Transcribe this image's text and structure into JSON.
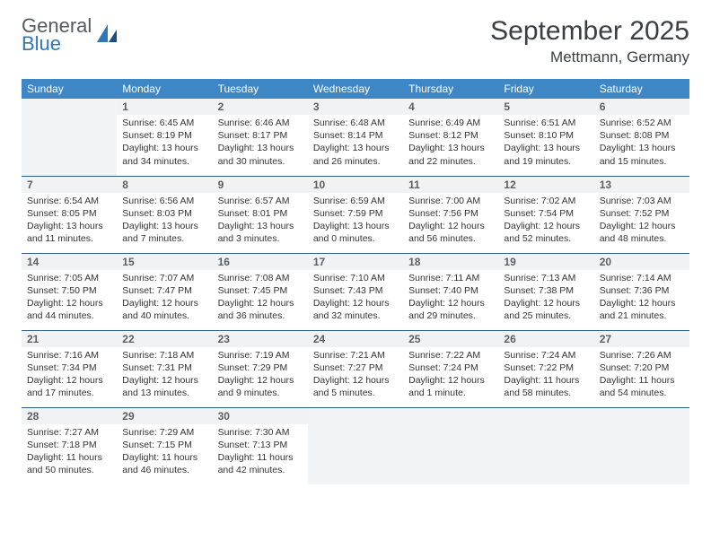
{
  "logo": {
    "text1": "General",
    "text2": "Blue"
  },
  "title": "September 2025",
  "location": "Mettmann, Germany",
  "colors": {
    "header_bg": "#3d87c7",
    "header_text": "#ffffff",
    "daynum_bg": "#f1f2f3",
    "empty_bg": "#f2f3f4",
    "rule": "#2f5d8a",
    "title_color": "#3a3f42",
    "logo_gray": "#555b60",
    "logo_blue": "#2e77b8"
  },
  "weekdays": [
    "Sunday",
    "Monday",
    "Tuesday",
    "Wednesday",
    "Thursday",
    "Friday",
    "Saturday"
  ],
  "weeks": [
    [
      null,
      {
        "d": "1",
        "sr": "Sunrise: 6:45 AM",
        "ss": "Sunset: 8:19 PM",
        "dl1": "Daylight: 13 hours",
        "dl2": "and 34 minutes."
      },
      {
        "d": "2",
        "sr": "Sunrise: 6:46 AM",
        "ss": "Sunset: 8:17 PM",
        "dl1": "Daylight: 13 hours",
        "dl2": "and 30 minutes."
      },
      {
        "d": "3",
        "sr": "Sunrise: 6:48 AM",
        "ss": "Sunset: 8:14 PM",
        "dl1": "Daylight: 13 hours",
        "dl2": "and 26 minutes."
      },
      {
        "d": "4",
        "sr": "Sunrise: 6:49 AM",
        "ss": "Sunset: 8:12 PM",
        "dl1": "Daylight: 13 hours",
        "dl2": "and 22 minutes."
      },
      {
        "d": "5",
        "sr": "Sunrise: 6:51 AM",
        "ss": "Sunset: 8:10 PM",
        "dl1": "Daylight: 13 hours",
        "dl2": "and 19 minutes."
      },
      {
        "d": "6",
        "sr": "Sunrise: 6:52 AM",
        "ss": "Sunset: 8:08 PM",
        "dl1": "Daylight: 13 hours",
        "dl2": "and 15 minutes."
      }
    ],
    [
      {
        "d": "7",
        "sr": "Sunrise: 6:54 AM",
        "ss": "Sunset: 8:05 PM",
        "dl1": "Daylight: 13 hours",
        "dl2": "and 11 minutes."
      },
      {
        "d": "8",
        "sr": "Sunrise: 6:56 AM",
        "ss": "Sunset: 8:03 PM",
        "dl1": "Daylight: 13 hours",
        "dl2": "and 7 minutes."
      },
      {
        "d": "9",
        "sr": "Sunrise: 6:57 AM",
        "ss": "Sunset: 8:01 PM",
        "dl1": "Daylight: 13 hours",
        "dl2": "and 3 minutes."
      },
      {
        "d": "10",
        "sr": "Sunrise: 6:59 AM",
        "ss": "Sunset: 7:59 PM",
        "dl1": "Daylight: 13 hours",
        "dl2": "and 0 minutes."
      },
      {
        "d": "11",
        "sr": "Sunrise: 7:00 AM",
        "ss": "Sunset: 7:56 PM",
        "dl1": "Daylight: 12 hours",
        "dl2": "and 56 minutes."
      },
      {
        "d": "12",
        "sr": "Sunrise: 7:02 AM",
        "ss": "Sunset: 7:54 PM",
        "dl1": "Daylight: 12 hours",
        "dl2": "and 52 minutes."
      },
      {
        "d": "13",
        "sr": "Sunrise: 7:03 AM",
        "ss": "Sunset: 7:52 PM",
        "dl1": "Daylight: 12 hours",
        "dl2": "and 48 minutes."
      }
    ],
    [
      {
        "d": "14",
        "sr": "Sunrise: 7:05 AM",
        "ss": "Sunset: 7:50 PM",
        "dl1": "Daylight: 12 hours",
        "dl2": "and 44 minutes."
      },
      {
        "d": "15",
        "sr": "Sunrise: 7:07 AM",
        "ss": "Sunset: 7:47 PM",
        "dl1": "Daylight: 12 hours",
        "dl2": "and 40 minutes."
      },
      {
        "d": "16",
        "sr": "Sunrise: 7:08 AM",
        "ss": "Sunset: 7:45 PM",
        "dl1": "Daylight: 12 hours",
        "dl2": "and 36 minutes."
      },
      {
        "d": "17",
        "sr": "Sunrise: 7:10 AM",
        "ss": "Sunset: 7:43 PM",
        "dl1": "Daylight: 12 hours",
        "dl2": "and 32 minutes."
      },
      {
        "d": "18",
        "sr": "Sunrise: 7:11 AM",
        "ss": "Sunset: 7:40 PM",
        "dl1": "Daylight: 12 hours",
        "dl2": "and 29 minutes."
      },
      {
        "d": "19",
        "sr": "Sunrise: 7:13 AM",
        "ss": "Sunset: 7:38 PM",
        "dl1": "Daylight: 12 hours",
        "dl2": "and 25 minutes."
      },
      {
        "d": "20",
        "sr": "Sunrise: 7:14 AM",
        "ss": "Sunset: 7:36 PM",
        "dl1": "Daylight: 12 hours",
        "dl2": "and 21 minutes."
      }
    ],
    [
      {
        "d": "21",
        "sr": "Sunrise: 7:16 AM",
        "ss": "Sunset: 7:34 PM",
        "dl1": "Daylight: 12 hours",
        "dl2": "and 17 minutes."
      },
      {
        "d": "22",
        "sr": "Sunrise: 7:18 AM",
        "ss": "Sunset: 7:31 PM",
        "dl1": "Daylight: 12 hours",
        "dl2": "and 13 minutes."
      },
      {
        "d": "23",
        "sr": "Sunrise: 7:19 AM",
        "ss": "Sunset: 7:29 PM",
        "dl1": "Daylight: 12 hours",
        "dl2": "and 9 minutes."
      },
      {
        "d": "24",
        "sr": "Sunrise: 7:21 AM",
        "ss": "Sunset: 7:27 PM",
        "dl1": "Daylight: 12 hours",
        "dl2": "and 5 minutes."
      },
      {
        "d": "25",
        "sr": "Sunrise: 7:22 AM",
        "ss": "Sunset: 7:24 PM",
        "dl1": "Daylight: 12 hours",
        "dl2": "and 1 minute."
      },
      {
        "d": "26",
        "sr": "Sunrise: 7:24 AM",
        "ss": "Sunset: 7:22 PM",
        "dl1": "Daylight: 11 hours",
        "dl2": "and 58 minutes."
      },
      {
        "d": "27",
        "sr": "Sunrise: 7:26 AM",
        "ss": "Sunset: 7:20 PM",
        "dl1": "Daylight: 11 hours",
        "dl2": "and 54 minutes."
      }
    ],
    [
      {
        "d": "28",
        "sr": "Sunrise: 7:27 AM",
        "ss": "Sunset: 7:18 PM",
        "dl1": "Daylight: 11 hours",
        "dl2": "and 50 minutes."
      },
      {
        "d": "29",
        "sr": "Sunrise: 7:29 AM",
        "ss": "Sunset: 7:15 PM",
        "dl1": "Daylight: 11 hours",
        "dl2": "and 46 minutes."
      },
      {
        "d": "30",
        "sr": "Sunrise: 7:30 AM",
        "ss": "Sunset: 7:13 PM",
        "dl1": "Daylight: 11 hours",
        "dl2": "and 42 minutes."
      },
      null,
      null,
      null,
      null
    ]
  ]
}
